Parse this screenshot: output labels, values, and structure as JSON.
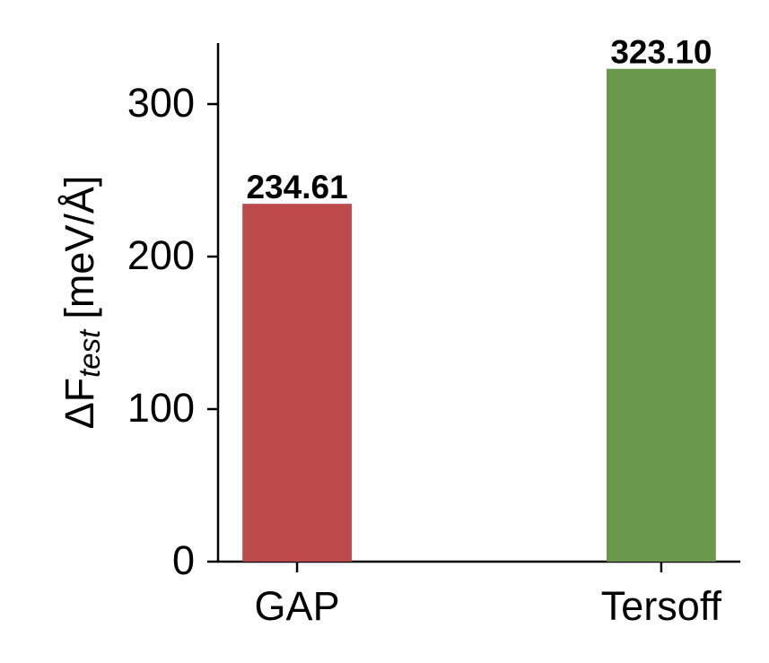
{
  "chart_data": {
    "type": "bar",
    "ylabel": {
      "main": "ΔF",
      "subscript": "test",
      "unit": "[meV/Å]"
    },
    "categories": [
      "GAP",
      "Tersoff"
    ],
    "series": [
      {
        "values": [
          234.61,
          323.1
        ],
        "value_labels": [
          "234.61",
          "323.10"
        ],
        "colors": [
          "#bc4a4a",
          "#6a994d"
        ]
      }
    ],
    "ylim": [
      0,
      340
    ],
    "yticks": [
      0,
      100,
      200,
      300
    ],
    "grid": false
  }
}
